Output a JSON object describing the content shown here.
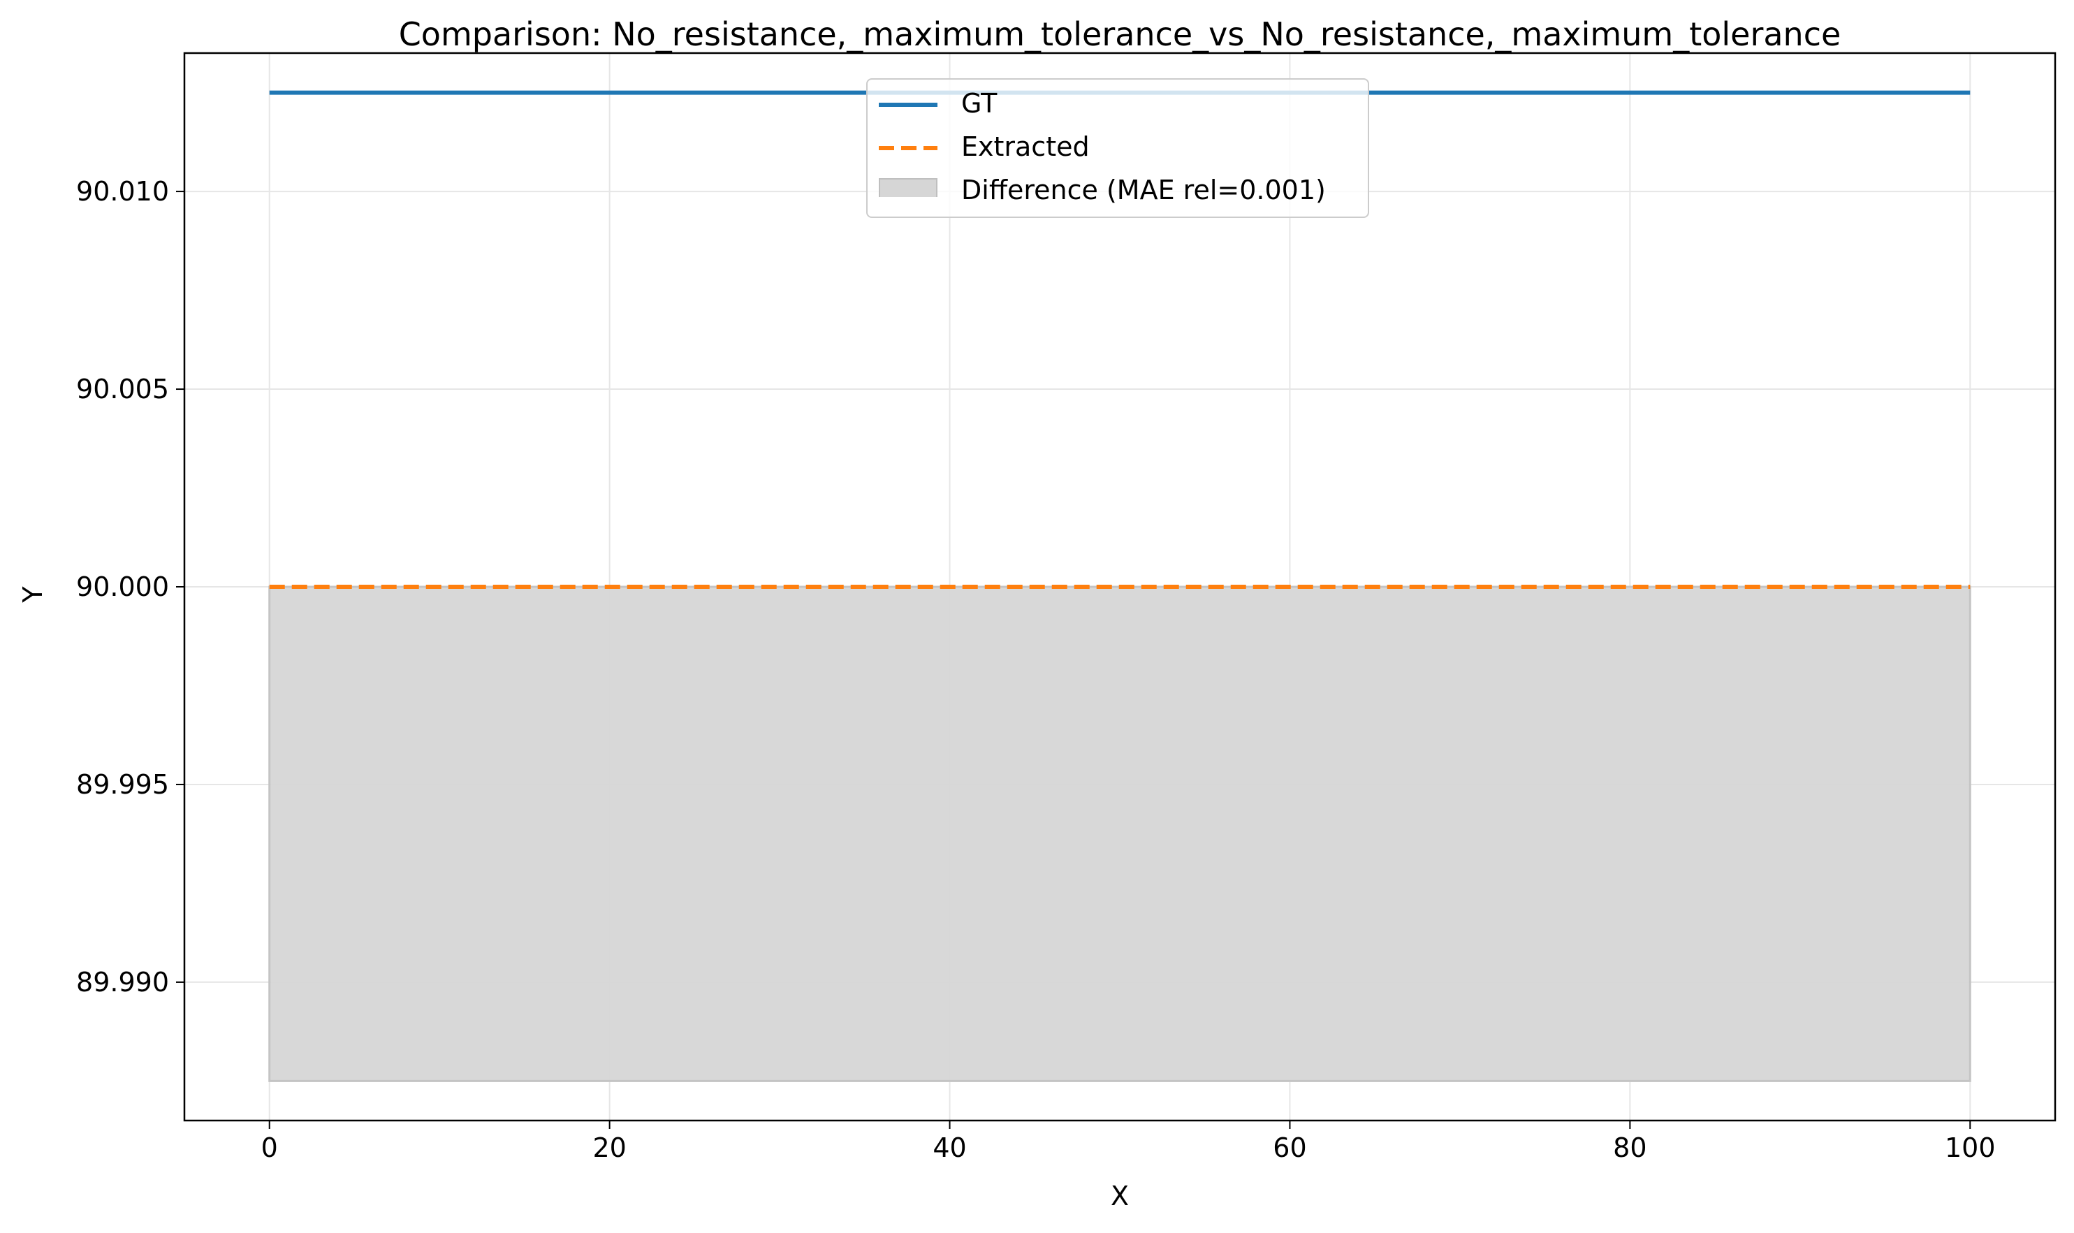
{
  "chart_data": {
    "type": "line",
    "title": "Comparison: No_resistance,_maximum_tolerance_vs_No_resistance,_maximum_tolerance",
    "xlabel": "X",
    "ylabel": "Y",
    "xlim": [
      -5,
      105
    ],
    "ylim": [
      89.9865,
      90.0135
    ],
    "xticks": [
      0,
      20,
      40,
      60,
      80,
      100
    ],
    "xtick_labels": [
      "0",
      "20",
      "40",
      "60",
      "80",
      "100"
    ],
    "yticks": [
      89.99,
      89.995,
      90.0,
      90.005,
      90.01
    ],
    "ytick_labels": [
      "89.990",
      "89.995",
      "90.000",
      "90.005",
      "90.010"
    ],
    "grid": true,
    "legend_position": "upper center",
    "series": [
      {
        "name": "GT",
        "style": "solid",
        "color": "#1f77b4",
        "x": [
          0,
          100
        ],
        "y": [
          90.0125,
          90.0125
        ]
      },
      {
        "name": "Extracted",
        "style": "dashed",
        "color": "#ff7f0e",
        "x": [
          0,
          100
        ],
        "y": [
          90.0,
          90.0
        ]
      }
    ],
    "fill": {
      "name": "Difference (MAE rel=0.001)",
      "color": "#d6d6d6",
      "x": [
        0,
        100
      ],
      "y_top": [
        90.0,
        90.0
      ],
      "y_bottom": [
        89.9875,
        89.9875
      ]
    }
  }
}
